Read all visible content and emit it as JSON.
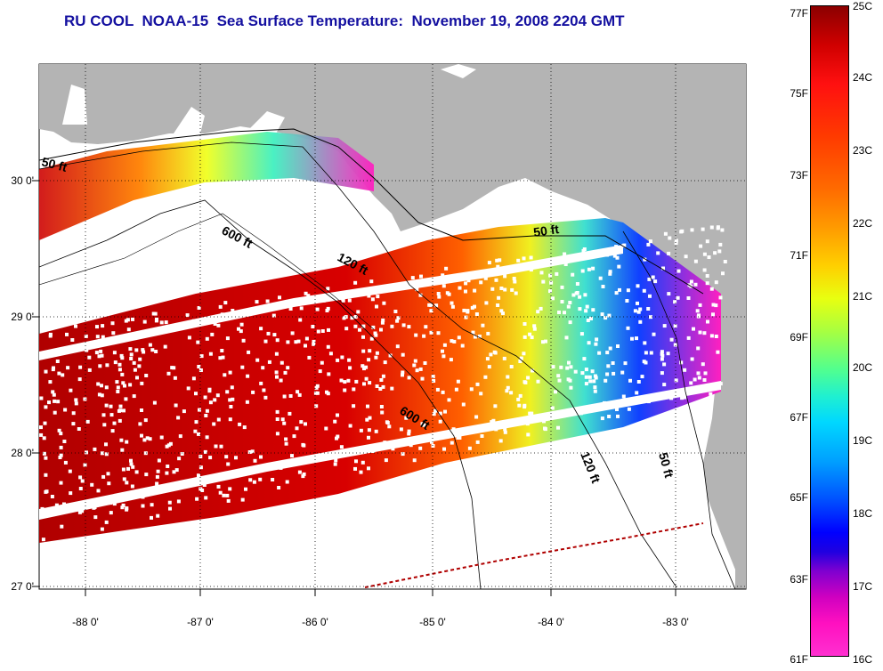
{
  "title": "RU COOL  NOAA-15  Sea Surface Temperature:  November 19, 2008 2204 GMT",
  "axes": {
    "lat_labels": [
      "30 0'",
      "29 0'",
      "28 0'",
      "27 0'"
    ],
    "lon_labels": [
      "-88 0'",
      "-87 0'",
      "-86 0'",
      "-85 0'",
      "-84 0'",
      "-83 0'"
    ]
  },
  "contours": {
    "labels": [
      "50 ft",
      "600 ft",
      "120 ft",
      "50 ft",
      "600 ft",
      "120 ft",
      "50 ft"
    ]
  },
  "colorbar": {
    "f_labels": [
      "77F",
      "75F",
      "73F",
      "71F",
      "69F",
      "67F",
      "65F",
      "63F",
      "61F"
    ],
    "c_labels": [
      "25C",
      "24C",
      "23C",
      "22C",
      "21C",
      "20C",
      "19C",
      "18C",
      "17C",
      "16C"
    ]
  },
  "colors": {
    "land": "#b4b4b4",
    "water_nodata": "#ffffff",
    "title": "#1410a0",
    "warm": "#b00000",
    "cool": "#ff20c0"
  }
}
